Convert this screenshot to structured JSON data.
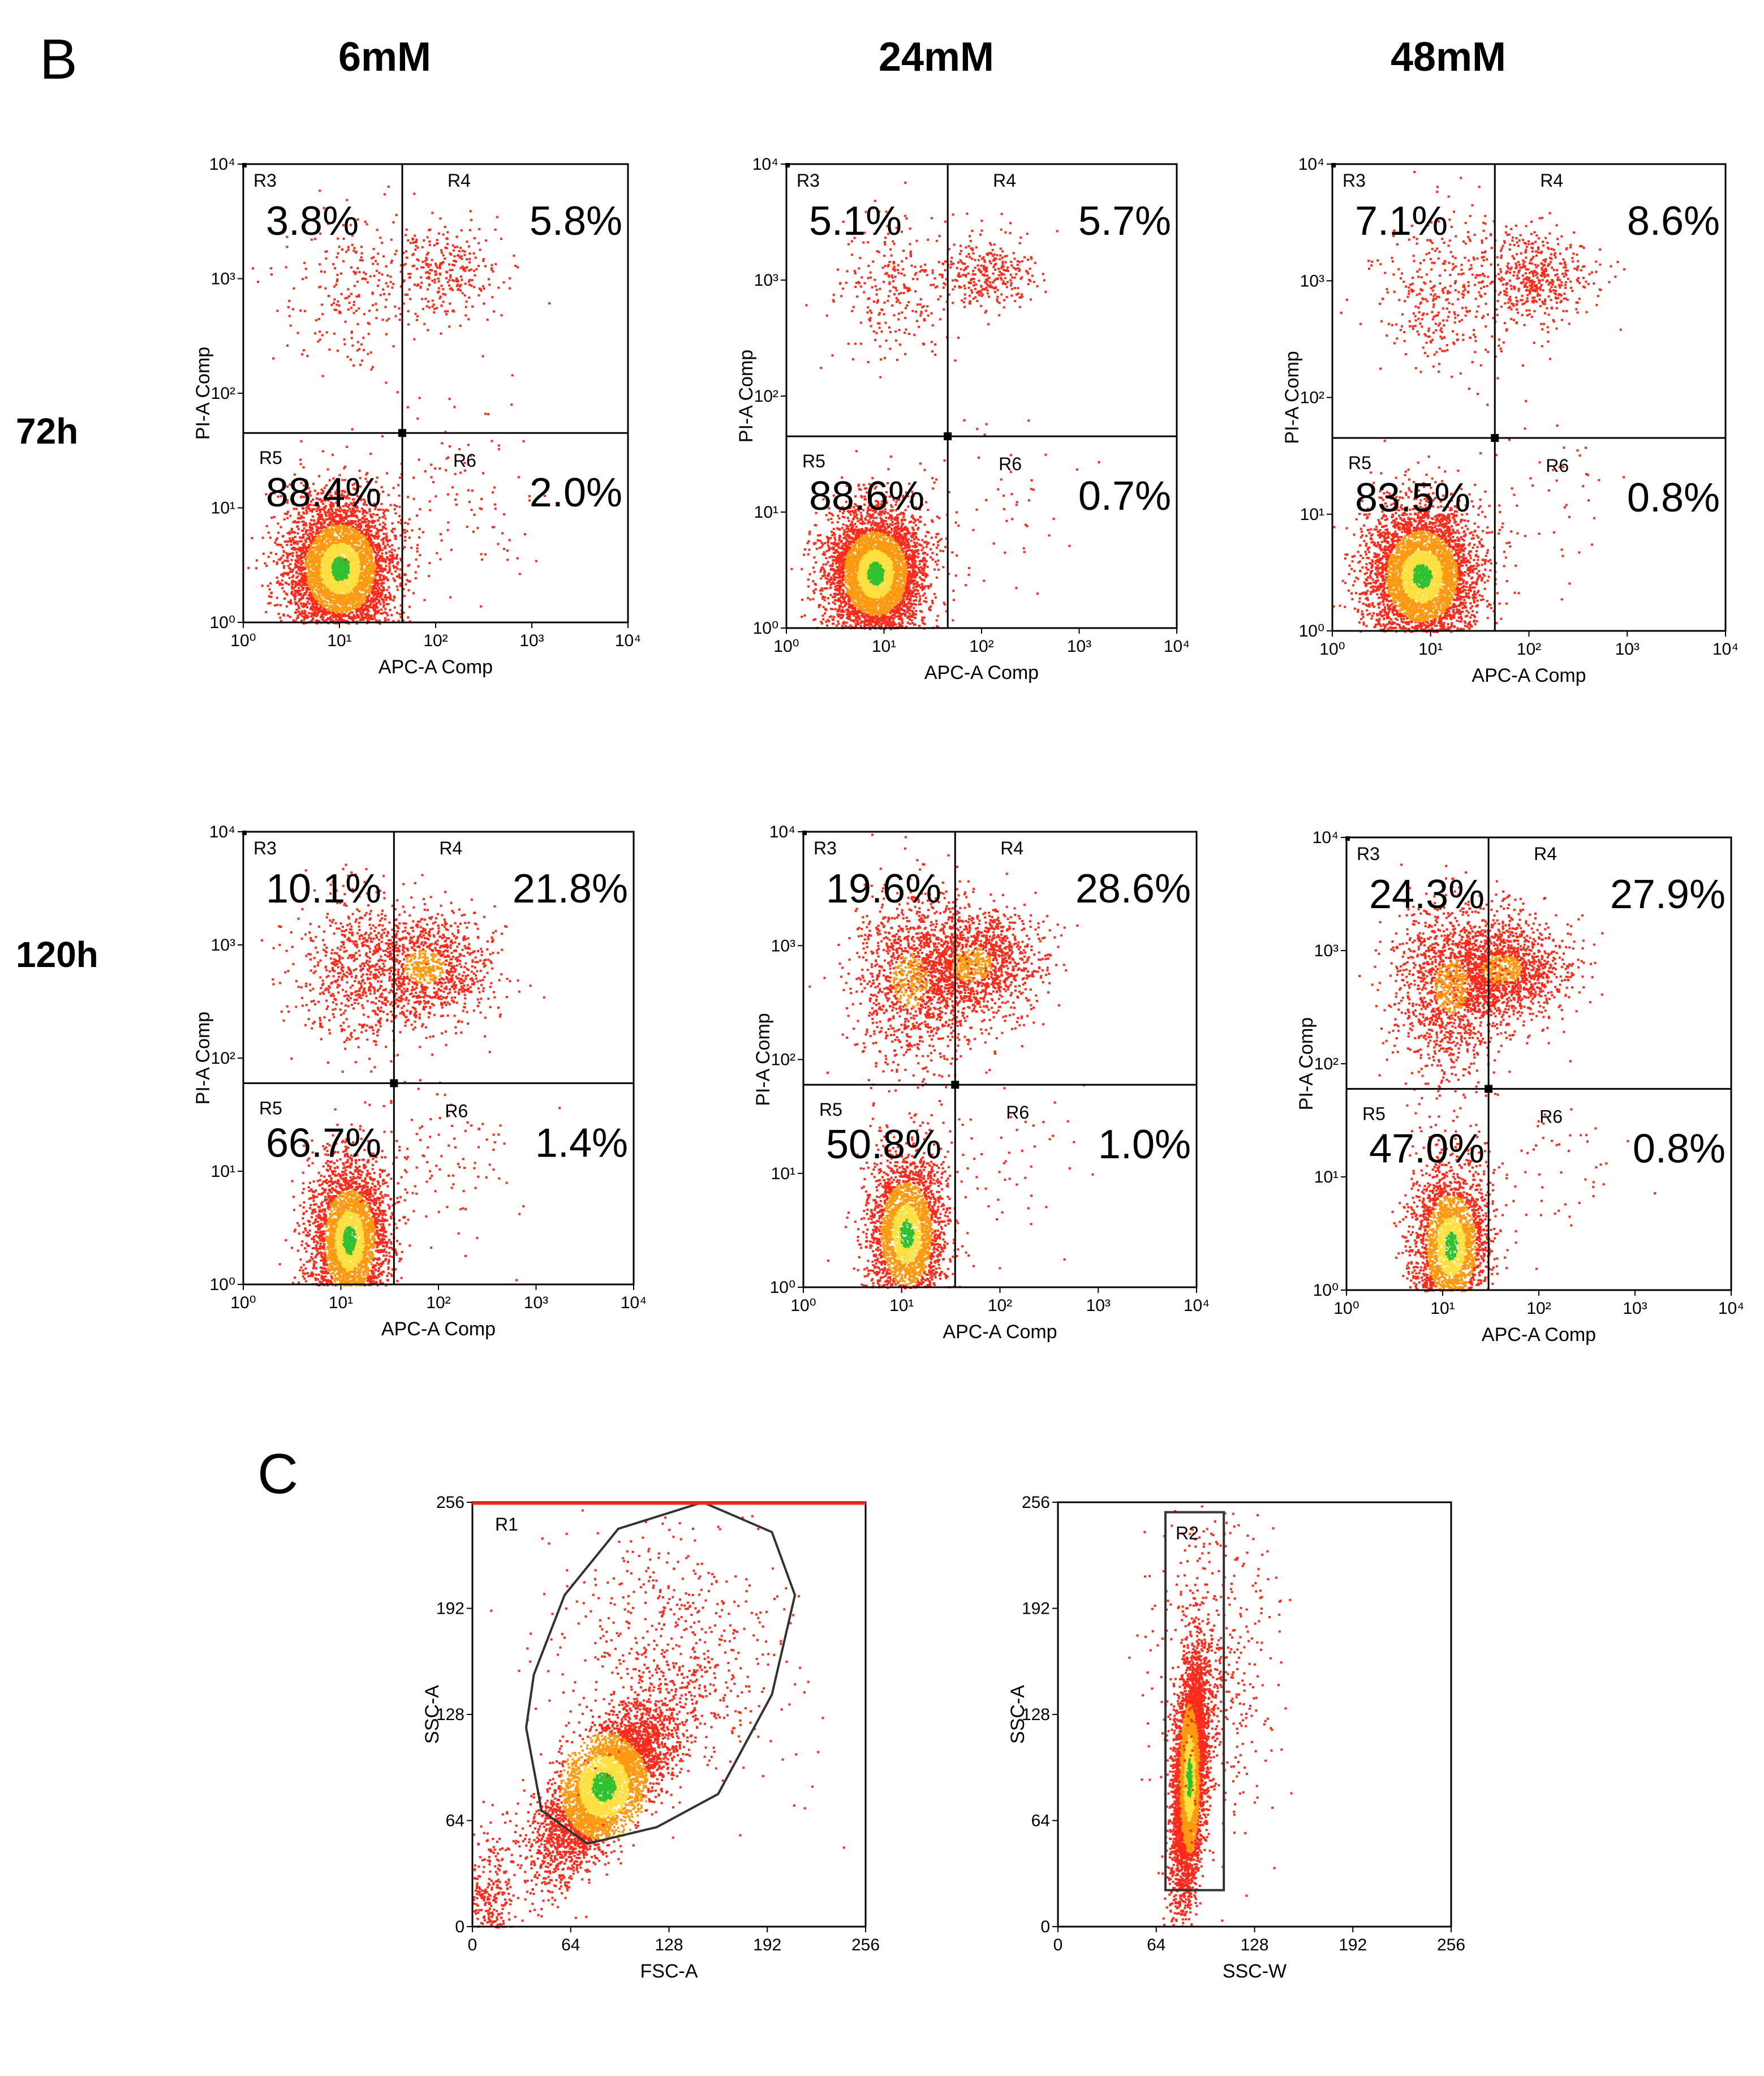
{
  "panel_labels": {
    "B": "B",
    "C": "C"
  },
  "column_headers": [
    "6mM",
    "24mM",
    "48mM"
  ],
  "row_headers": [
    "72h",
    "120h"
  ],
  "colors": {
    "point": "#ff2a1a",
    "mid": "#ff9a10",
    "dense": "#ffe040",
    "core": "#30c030"
  },
  "chart_data": [
    {
      "id": "B-72h-6mM",
      "type": "scatter",
      "xscale": "log",
      "yscale": "log",
      "xlabel": "APC-A Comp",
      "ylabel": "PI-A Comp",
      "xlim": [
        1,
        10000
      ],
      "ylim": [
        1,
        10000
      ],
      "x_tick_labels": [
        "10⁰",
        "10¹",
        "10²",
        "10³",
        "10⁴"
      ],
      "y_tick_labels": [
        "10⁰",
        "10¹",
        "10²",
        "10³",
        "10⁴"
      ],
      "quadrant_gate": {
        "x": 45,
        "y": 45
      },
      "regions": [
        "R3",
        "R4",
        "R5",
        "R6"
      ],
      "percentages": {
        "R3": "3.8%",
        "R4": "5.8%",
        "R5": "88.4%",
        "R6": "2.0%"
      },
      "clusters": [
        {
          "x": 10,
          "y": 3,
          "spread": [
            0.28,
            0.3
          ],
          "weight": 0.88
        },
        {
          "x": 110,
          "y": 1200,
          "spread": [
            0.3,
            0.22
          ],
          "weight": 0.06
        },
        {
          "x": 12,
          "y": 900,
          "spread": [
            0.35,
            0.35
          ],
          "weight": 0.04
        },
        {
          "x": 150,
          "y": 15,
          "spread": [
            0.4,
            0.4
          ],
          "weight": 0.02
        }
      ]
    },
    {
      "id": "B-72h-24mM",
      "type": "scatter",
      "xscale": "log",
      "yscale": "log",
      "xlabel": "APC-A Comp",
      "ylabel": "PI-A Comp",
      "xlim": [
        1,
        10000
      ],
      "ylim": [
        1,
        10000
      ],
      "x_tick_labels": [
        "10⁰",
        "10¹",
        "10²",
        "10³",
        "10⁴"
      ],
      "y_tick_labels": [
        "10⁰",
        "10¹",
        "10²",
        "10³",
        "10⁴"
      ],
      "quadrant_gate": {
        "x": 45,
        "y": 45
      },
      "regions": [
        "R3",
        "R4",
        "R5",
        "R6"
      ],
      "percentages": {
        "R3": "5.1%",
        "R4": "5.7%",
        "R5": "88.6%",
        "R6": "0.7%"
      },
      "clusters": [
        {
          "x": 8,
          "y": 3,
          "spread": [
            0.25,
            0.28
          ],
          "weight": 0.88
        },
        {
          "x": 110,
          "y": 1200,
          "spread": [
            0.25,
            0.18
          ],
          "weight": 0.06
        },
        {
          "x": 12,
          "y": 900,
          "spread": [
            0.3,
            0.3
          ],
          "weight": 0.05
        },
        {
          "x": 150,
          "y": 15,
          "spread": [
            0.4,
            0.4
          ],
          "weight": 0.01
        }
      ]
    },
    {
      "id": "B-72h-48mM",
      "type": "scatter",
      "xscale": "log",
      "yscale": "log",
      "xlabel": "APC-A Comp",
      "ylabel": "PI-A Comp",
      "xlim": [
        1,
        10000
      ],
      "ylim": [
        1,
        10000
      ],
      "x_tick_labels": [
        "10⁰",
        "10¹",
        "10²",
        "10³",
        "10⁴"
      ],
      "y_tick_labels": [
        "10⁰",
        "10¹",
        "10²",
        "10³",
        "10⁴"
      ],
      "quadrant_gate": {
        "x": 45,
        "y": 45
      },
      "regions": [
        "R3",
        "R4",
        "R5",
        "R6"
      ],
      "percentages": {
        "R3": "7.1%",
        "R4": "8.6%",
        "R5": "83.5%",
        "R6": "0.8%"
      },
      "clusters": [
        {
          "x": 8,
          "y": 3,
          "spread": [
            0.28,
            0.3
          ],
          "weight": 0.83
        },
        {
          "x": 120,
          "y": 1100,
          "spread": [
            0.28,
            0.2
          ],
          "weight": 0.09
        },
        {
          "x": 14,
          "y": 800,
          "spread": [
            0.35,
            0.35
          ],
          "weight": 0.07
        },
        {
          "x": 150,
          "y": 15,
          "spread": [
            0.4,
            0.4
          ],
          "weight": 0.01
        }
      ]
    },
    {
      "id": "B-120h-6mM",
      "type": "scatter",
      "xscale": "log",
      "yscale": "log",
      "xlabel": "APC-A Comp",
      "ylabel": "PI-A Comp",
      "xlim": [
        1,
        10000
      ],
      "ylim": [
        1,
        10000
      ],
      "x_tick_labels": [
        "10⁰",
        "10¹",
        "10²",
        "10³",
        "10⁴"
      ],
      "y_tick_labels": [
        "10⁰",
        "10¹",
        "10²",
        "10³",
        "10⁴"
      ],
      "quadrant_gate": {
        "x": 35,
        "y": 60
      },
      "regions": [
        "R3",
        "R4",
        "R5",
        "R6"
      ],
      "percentages": {
        "R3": "10.1%",
        "R4": "21.8%",
        "R5": "66.7%",
        "R6": "1.4%"
      },
      "clusters": [
        {
          "x": 12,
          "y": 2.5,
          "spread": [
            0.2,
            0.35
          ],
          "weight": 0.66
        },
        {
          "x": 70,
          "y": 650,
          "spread": [
            0.35,
            0.25
          ],
          "weight": 0.22
        },
        {
          "x": 12,
          "y": 600,
          "spread": [
            0.3,
            0.35
          ],
          "weight": 0.1
        },
        {
          "x": 120,
          "y": 12,
          "spread": [
            0.4,
            0.4
          ],
          "weight": 0.02
        }
      ]
    },
    {
      "id": "B-120h-24mM",
      "type": "scatter",
      "xscale": "log",
      "yscale": "log",
      "xlabel": "APC-A Comp",
      "ylabel": "PI-A Comp",
      "xlim": [
        1,
        10000
      ],
      "ylim": [
        1,
        10000
      ],
      "x_tick_labels": [
        "10⁰",
        "10¹",
        "10²",
        "10³",
        "10⁴"
      ],
      "y_tick_labels": [
        "10⁰",
        "10¹",
        "10²",
        "10³",
        "10⁴"
      ],
      "quadrant_gate": {
        "x": 35,
        "y": 60
      },
      "regions": [
        "R3",
        "R4",
        "R5",
        "R6"
      ],
      "percentages": {
        "R3": "19.6%",
        "R4": "28.6%",
        "R5": "50.8%",
        "R6": "1.0%"
      },
      "clusters": [
        {
          "x": 11,
          "y": 3,
          "spread": [
            0.2,
            0.35
          ],
          "weight": 0.5
        },
        {
          "x": 50,
          "y": 700,
          "spread": [
            0.35,
            0.25
          ],
          "weight": 0.29
        },
        {
          "x": 12,
          "y": 500,
          "spread": [
            0.3,
            0.4
          ],
          "weight": 0.2
        },
        {
          "x": 120,
          "y": 12,
          "spread": [
            0.4,
            0.4
          ],
          "weight": 0.01
        }
      ]
    },
    {
      "id": "B-120h-48mM",
      "type": "scatter",
      "xscale": "log",
      "yscale": "log",
      "xlabel": "APC-A Comp",
      "ylabel": "PI-A Comp",
      "xlim": [
        1,
        10000
      ],
      "ylim": [
        1,
        10000
      ],
      "x_tick_labels": [
        "10⁰",
        "10¹",
        "10²",
        "10³",
        "10⁴"
      ],
      "y_tick_labels": [
        "10⁰",
        "10¹",
        "10²",
        "10³",
        "10⁴"
      ],
      "quadrant_gate": {
        "x": 30,
        "y": 60
      },
      "regions": [
        "R3",
        "R4",
        "R5",
        "R6"
      ],
      "percentages": {
        "R3": "24.3%",
        "R4": "27.9%",
        "R5": "47.0%",
        "R6": "0.8%"
      },
      "clusters": [
        {
          "x": 12,
          "y": 2.5,
          "spread": [
            0.2,
            0.35
          ],
          "weight": 0.47
        },
        {
          "x": 40,
          "y": 700,
          "spread": [
            0.35,
            0.22
          ],
          "weight": 0.28
        },
        {
          "x": 12,
          "y": 500,
          "spread": [
            0.3,
            0.4
          ],
          "weight": 0.24
        },
        {
          "x": 120,
          "y": 12,
          "spread": [
            0.4,
            0.4
          ],
          "weight": 0.01
        }
      ]
    },
    {
      "id": "C-FSC-SSC",
      "type": "scatter",
      "xscale": "linear",
      "yscale": "linear",
      "xlabel": "FSC-A",
      "ylabel": "SSC-A",
      "xlim": [
        0,
        256
      ],
      "ylim": [
        0,
        256
      ],
      "x_tick_labels": [
        "0",
        "64",
        "128",
        "192",
        "256"
      ],
      "y_tick_labels": [
        "0",
        "64",
        "128",
        "192",
        "256"
      ],
      "gate_label": "R1",
      "gate_shape": "polygon",
      "gate_polygon": [
        [
          40,
          152
        ],
        [
          60,
          200
        ],
        [
          95,
          240
        ],
        [
          150,
          256
        ],
        [
          195,
          238
        ],
        [
          210,
          200
        ],
        [
          195,
          140
        ],
        [
          160,
          80
        ],
        [
          120,
          60
        ],
        [
          75,
          50
        ],
        [
          45,
          70
        ],
        [
          35,
          120
        ]
      ],
      "clusters": [
        {
          "x": 85,
          "y": 85,
          "spread": [
            22,
            25
          ],
          "weight": 0.82
        },
        {
          "x": 130,
          "y": 160,
          "spread": [
            35,
            40
          ],
          "weight": 0.12
        },
        {
          "x": 10,
          "y": 15,
          "spread": [
            8,
            20
          ],
          "weight": 0.06
        }
      ]
    },
    {
      "id": "C-SSCW-SSC",
      "type": "scatter",
      "xscale": "linear",
      "yscale": "linear",
      "xlabel": "SSC-W",
      "ylabel": "SSC-A",
      "xlim": [
        0,
        256
      ],
      "ylim": [
        0,
        256
      ],
      "x_tick_labels": [
        "0",
        "64",
        "128",
        "192",
        "256"
      ],
      "y_tick_labels": [
        "0",
        "64",
        "128",
        "192",
        "256"
      ],
      "gate_label": "R2",
      "gate_shape": "rectangle",
      "gate_rect": {
        "x0": 70,
        "x1": 108,
        "y0": 22,
        "y1": 250
      },
      "clusters": [
        {
          "x": 85,
          "y": 90,
          "spread": [
            5,
            35
          ],
          "weight": 0.9
        },
        {
          "x": 100,
          "y": 160,
          "spread": [
            20,
            50
          ],
          "weight": 0.1
        }
      ]
    }
  ]
}
